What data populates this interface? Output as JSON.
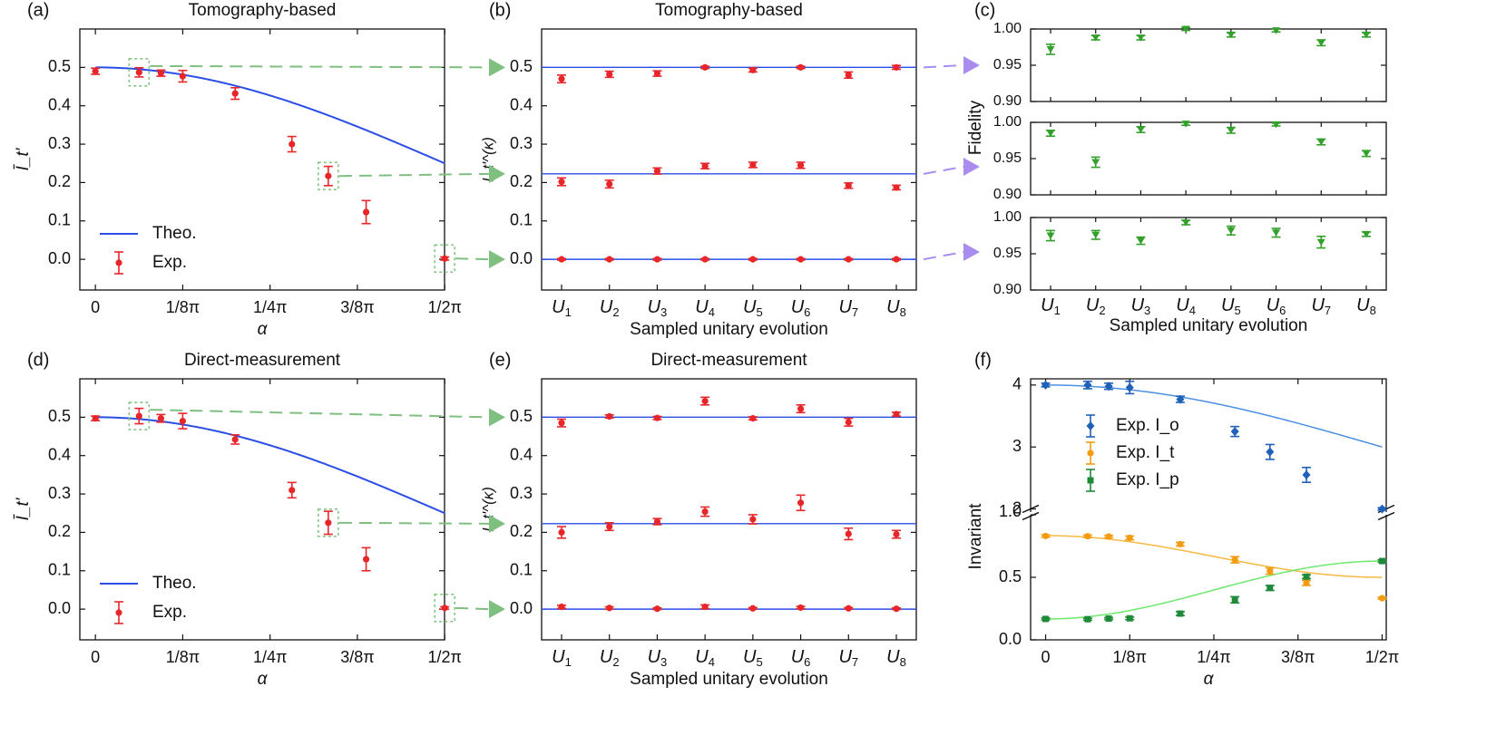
{
  "colors": {
    "theory_line": "#2b4ee6",
    "exp_red": "#e8262a",
    "arrow_green": "#7fbf7f",
    "arrow_purple": "#a98ef0",
    "fidelity_green": "#33a02c",
    "box_green": "#85c785",
    "blue_Io": "#2060b8",
    "curve_Io": "#4a90e2",
    "orange_It": "#f39c12",
    "curve_It": "#f5b942",
    "green_Ip": "#1e8a3a",
    "curve_Ip": "#6ee86e"
  },
  "chart_data": [
    {
      "id": "a",
      "type": "scatter",
      "panel_label": "(a)",
      "title": "Tomography-based",
      "xlabel": "α",
      "ylabel": "Ī_t'",
      "xlim": [
        -0.035,
        0.785
      ],
      "ylim": [
        -0.08,
        0.6
      ],
      "xticks": [
        0,
        0.19635,
        0.3927,
        0.58905,
        0.7854
      ],
      "xticklabels": [
        "0",
        "1/8π",
        "1/4π",
        "3/8π",
        "1/2π"
      ],
      "yticks": [
        0.0,
        0.1,
        0.2,
        0.3,
        0.4,
        0.5
      ],
      "yticklabels": [
        "0.0",
        "0.1",
        "0.2",
        "0.3",
        "0.4",
        "0.5"
      ],
      "theory": "0.25*(1+cos(2*alpha))",
      "legend": [
        "Theo.",
        "Exp."
      ],
      "series": [
        {
          "name": "Exp.",
          "x": [
            0,
            0.0982,
            0.1473,
            0.1963,
            0.3142,
            0.4418,
            0.5236,
            0.6087,
            0.7854
          ],
          "y": [
            0.49,
            0.487,
            0.485,
            0.477,
            0.432,
            0.3,
            0.217,
            0.123,
            0.002
          ],
          "err": [
            0.008,
            0.012,
            0.008,
            0.015,
            0.015,
            0.02,
            0.025,
            0.03,
            0.004
          ]
        }
      ],
      "highlight_x": [
        0.0982,
        0.5236,
        0.7854
      ]
    },
    {
      "id": "b",
      "type": "scatter",
      "panel_label": "(b)",
      "title": "Tomography-based",
      "xlabel": "Sampled unitary evolution",
      "ylabel": "I_t'^(κ)",
      "ylim": [
        -0.08,
        0.6
      ],
      "categories": [
        "U1",
        "U2",
        "U3",
        "U4",
        "U5",
        "U6",
        "U7",
        "U8"
      ],
      "yticks": [
        0.0,
        0.1,
        0.2,
        0.3,
        0.4,
        0.5
      ],
      "yticklabels": [
        "0.0",
        "0.1",
        "0.2",
        "0.3",
        "0.4",
        "0.5"
      ],
      "theory_levels": [
        0.5,
        0.2226,
        0.0
      ],
      "series": [
        {
          "name": "0.5 level",
          "y": [
            0.47,
            0.482,
            0.484,
            0.5,
            0.493,
            0.5,
            0.48,
            0.5
          ],
          "err": [
            0.01,
            0.008,
            0.007,
            0.003,
            0.005,
            0.003,
            0.008,
            0.005
          ]
        },
        {
          "name": "0.22 level",
          "y": [
            0.202,
            0.196,
            0.23,
            0.243,
            0.246,
            0.245,
            0.192,
            0.187
          ],
          "err": [
            0.01,
            0.01,
            0.008,
            0.007,
            0.007,
            0.008,
            0.007,
            0.006
          ]
        },
        {
          "name": "0 level",
          "y": [
            0.0,
            0.0,
            0.0,
            0.0,
            0.0,
            0.0,
            0.0,
            0.0
          ],
          "err": [
            0.002,
            0.002,
            0.002,
            0.002,
            0.002,
            0.002,
            0.002,
            0.002
          ]
        }
      ]
    },
    {
      "id": "c",
      "type": "scatter",
      "panel_label": "(c)",
      "xlabel": "Sampled unitary evolution",
      "ylabel": "Fidelity",
      "categories": [
        "U1",
        "U2",
        "U3",
        "U4",
        "U5",
        "U6",
        "U7",
        "U8"
      ],
      "subplots": [
        {
          "ylim": [
            0.9,
            1.0
          ],
          "yticks": [
            0.9,
            0.95,
            1.0
          ],
          "yticklabels": [
            "0.90",
            "0.95",
            "1.00"
          ],
          "y": [
            0.972,
            0.988,
            0.988,
            1.0,
            0.992,
            0.998,
            0.981,
            0.992
          ],
          "err": [
            0.007,
            0.003,
            0.003,
            0.002,
            0.003,
            0.002,
            0.004,
            0.003
          ]
        },
        {
          "ylim": [
            0.9,
            1.0
          ],
          "yticks": [
            0.9,
            0.95,
            1.0
          ],
          "yticklabels": [
            "0.90",
            "0.95",
            "1.00"
          ],
          "y": [
            0.985,
            0.945,
            0.99,
            0.998,
            0.989,
            0.997,
            0.973,
            0.957
          ],
          "err": [
            0.004,
            0.007,
            0.004,
            0.002,
            0.004,
            0.002,
            0.004,
            0.004
          ]
        },
        {
          "ylim": [
            0.9,
            1.0
          ],
          "yticks": [
            0.9,
            0.95,
            1.0
          ],
          "yticklabels": [
            "0.90",
            "0.95",
            "1.00"
          ],
          "y": [
            0.975,
            0.976,
            0.968,
            0.993,
            0.982,
            0.979,
            0.966,
            0.977
          ],
          "err": [
            0.007,
            0.006,
            0.005,
            0.003,
            0.006,
            0.006,
            0.008,
            0.003
          ]
        }
      ]
    },
    {
      "id": "d",
      "type": "scatter",
      "panel_label": "(d)",
      "title": "Direct-measurement",
      "xlabel": "α",
      "ylabel": "Ī_t'",
      "xlim": [
        -0.035,
        0.785
      ],
      "ylim": [
        -0.08,
        0.6
      ],
      "xticks": [
        0,
        0.19635,
        0.3927,
        0.58905,
        0.7854
      ],
      "xticklabels": [
        "0",
        "1/8π",
        "1/4π",
        "3/8π",
        "1/2π"
      ],
      "yticks": [
        0.0,
        0.1,
        0.2,
        0.3,
        0.4,
        0.5
      ],
      "yticklabels": [
        "0.0",
        "0.1",
        "0.2",
        "0.3",
        "0.4",
        "0.5"
      ],
      "theory": "0.25*(1+cos(2*alpha))",
      "legend": [
        "Theo.",
        "Exp."
      ],
      "series": [
        {
          "name": "Exp.",
          "x": [
            0,
            0.0982,
            0.1473,
            0.1963,
            0.3142,
            0.4418,
            0.5236,
            0.6087,
            0.7854
          ],
          "y": [
            0.497,
            0.503,
            0.497,
            0.49,
            0.442,
            0.31,
            0.225,
            0.13,
            0.003
          ],
          "err": [
            0.006,
            0.02,
            0.01,
            0.02,
            0.012,
            0.02,
            0.03,
            0.03,
            0.003
          ]
        }
      ],
      "highlight_x": [
        0.0982,
        0.5236,
        0.7854
      ]
    },
    {
      "id": "e",
      "type": "scatter",
      "panel_label": "(e)",
      "title": "Direct-measurement",
      "xlabel": "Sampled unitary evolution",
      "ylabel": "I_t'^(κ)",
      "ylim": [
        -0.08,
        0.6
      ],
      "categories": [
        "U1",
        "U2",
        "U3",
        "U4",
        "U5",
        "U6",
        "U7",
        "U8"
      ],
      "yticks": [
        0.0,
        0.1,
        0.2,
        0.3,
        0.4,
        0.5
      ],
      "yticklabels": [
        "0.0",
        "0.1",
        "0.2",
        "0.3",
        "0.4",
        "0.5"
      ],
      "theory_levels": [
        0.5,
        0.2226,
        0.0
      ],
      "series": [
        {
          "name": "0.5 level",
          "y": [
            0.485,
            0.502,
            0.498,
            0.542,
            0.497,
            0.522,
            0.487,
            0.508
          ],
          "err": [
            0.01,
            0.004,
            0.004,
            0.01,
            0.004,
            0.01,
            0.01,
            0.005
          ]
        },
        {
          "name": "0.22 level",
          "y": [
            0.2,
            0.215,
            0.228,
            0.254,
            0.234,
            0.277,
            0.196,
            0.195
          ],
          "err": [
            0.015,
            0.01,
            0.008,
            0.012,
            0.012,
            0.02,
            0.015,
            0.01
          ]
        },
        {
          "name": "0 level",
          "y": [
            0.006,
            0.003,
            0.001,
            0.006,
            0.002,
            0.004,
            0.002,
            0.001
          ],
          "err": [
            0.004,
            0.003,
            0.002,
            0.005,
            0.002,
            0.003,
            0.002,
            0.002
          ]
        }
      ]
    },
    {
      "id": "f",
      "type": "scatter",
      "panel_label": "(f)",
      "xlabel": "α",
      "ylabel": "Invariant",
      "xlim": [
        -0.035,
        0.795
      ],
      "xticks": [
        0,
        0.19635,
        0.3927,
        0.58905,
        0.7854
      ],
      "xticklabels": [
        "0",
        "1/8π",
        "1/4π",
        "3/8π",
        "1/2π"
      ],
      "upper": {
        "ylim": [
          1.95,
          4.1
        ],
        "yticks": [
          2,
          3,
          4
        ],
        "yticklabels": [
          "2",
          "3",
          "4"
        ]
      },
      "lower": {
        "ylim": [
          0.0,
          1.0
        ],
        "yticks": [
          0.0,
          0.5,
          1.0
        ],
        "yticklabels": [
          "0.0",
          "0.5",
          "1.0"
        ]
      },
      "legend": [
        "Exp. I_o",
        "Exp. I_t",
        "Exp. I_p"
      ],
      "legend_parts": [
        {
          "prefix": "Exp. ",
          "sym": "I",
          "sub": "o"
        },
        {
          "prefix": "Exp. ",
          "sym": "I",
          "sub": "t"
        },
        {
          "prefix": "Exp. ",
          "sym": "I",
          "sub": "p"
        }
      ],
      "series": [
        {
          "name": "Exp. I_o",
          "x": [
            0,
            0.0982,
            0.1473,
            0.1963,
            0.3142,
            0.4418,
            0.5236,
            0.6087,
            0.7854
          ],
          "y": [
            4.0,
            4.0,
            3.98,
            3.96,
            3.77,
            3.25,
            2.92,
            2.55,
            2.0
          ],
          "err": [
            0.03,
            0.06,
            0.05,
            0.1,
            0.05,
            0.08,
            0.12,
            0.12,
            0.02
          ]
        },
        {
          "name": "Exp. I_t",
          "x": [
            0,
            0.0982,
            0.1473,
            0.1963,
            0.3142,
            0.4418,
            0.5236,
            0.6087,
            0.7854
          ],
          "y": [
            0.83,
            0.828,
            0.826,
            0.815,
            0.765,
            0.64,
            0.55,
            0.455,
            0.333
          ],
          "err": [
            0.01,
            0.01,
            0.01,
            0.015,
            0.015,
            0.025,
            0.025,
            0.02,
            0.008
          ]
        },
        {
          "name": "Exp. I_p",
          "x": [
            0,
            0.0982,
            0.1473,
            0.1963,
            0.3142,
            0.4418,
            0.5236,
            0.6087,
            0.7854
          ],
          "y": [
            0.167,
            0.165,
            0.17,
            0.172,
            0.21,
            0.32,
            0.415,
            0.505,
            0.63
          ],
          "err": [
            0.008,
            0.008,
            0.008,
            0.01,
            0.015,
            0.025,
            0.02,
            0.015,
            0.01
          ]
        }
      ]
    }
  ]
}
